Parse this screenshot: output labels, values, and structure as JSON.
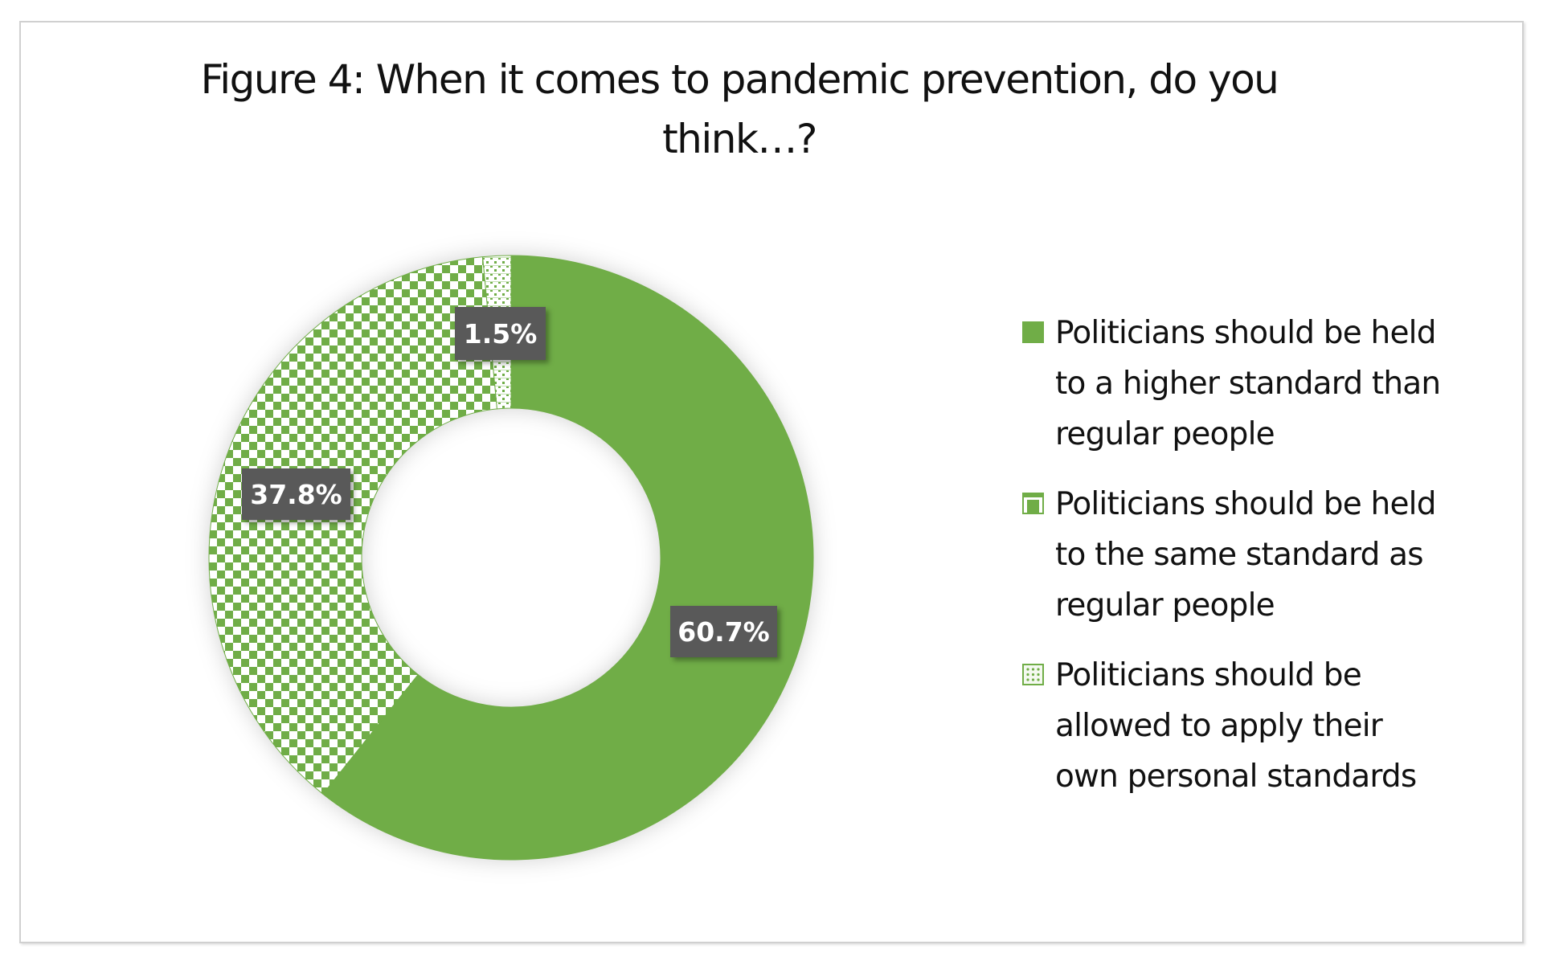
{
  "chart_data": {
    "type": "pie",
    "variant": "donut",
    "title": "Figure 4: When it comes to pandemic prevention, do you think…?",
    "title_lines": [
      "Figure 4: When it comes to pandemic prevention, do you",
      "think…?"
    ],
    "categories": [
      "Politicians should be held to a higher standard than regular people",
      "Politicians should be held to the same standard as regular people",
      "Politicians should be allowed to apply their own personal standards"
    ],
    "values": [
      60.7,
      37.8,
      1.5
    ],
    "data_labels": [
      "60.7%",
      "37.8%",
      "1.5%"
    ],
    "unit": "%",
    "series_fills": [
      "solid",
      "checkerboard",
      "dotted"
    ],
    "colors": [
      "#70AD47",
      "#70AD47",
      "#70AD47"
    ],
    "legend_position": "right",
    "legend": [
      {
        "lines": [
          "Politicians should be held",
          "to a higher standard than",
          "regular people"
        ]
      },
      {
        "lines": [
          "Politicians should be held",
          "to the same standard as",
          "regular people"
        ]
      },
      {
        "lines": [
          "Politicians should be",
          "allowed to apply their",
          "own personal standards"
        ]
      }
    ]
  },
  "theme": {
    "accent": "#70AD47",
    "label_bg": "#595959",
    "label_text": "#FFFFFF"
  }
}
